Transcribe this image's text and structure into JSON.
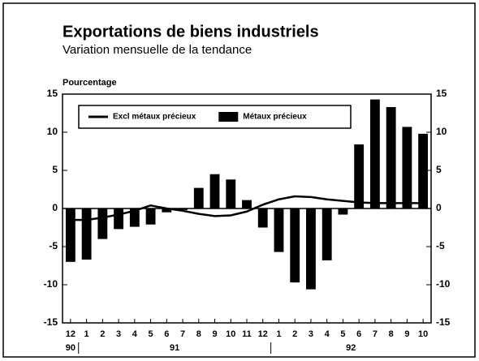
{
  "chart_data": {
    "type": "bar",
    "title": "Exportations de biens industriels",
    "subtitle": "Variation mensuelle de la tendance",
    "y_axis_label": "Pourcentage",
    "categories": [
      "12",
      "1",
      "2",
      "3",
      "4",
      "5",
      "6",
      "7",
      "8",
      "9",
      "10",
      "11",
      "12",
      "1",
      "2",
      "3",
      "4",
      "5",
      "6",
      "7",
      "8",
      "9",
      "10"
    ],
    "x_groups": [
      {
        "label": "90",
        "start": 0,
        "end": 0
      },
      {
        "label": "91",
        "start": 1,
        "end": 12
      },
      {
        "label": "92",
        "start": 13,
        "end": 22
      }
    ],
    "series": [
      {
        "name": "Excl métaux précieux",
        "kind": "line",
        "color": "#000000",
        "values": [
          -1.5,
          -1.5,
          -1.2,
          -0.8,
          -0.3,
          0.4,
          0,
          -0.3,
          -0.7,
          -1.0,
          -0.9,
          -0.4,
          0.5,
          1.2,
          1.6,
          1.5,
          1.2,
          1.0,
          0.8,
          0.7,
          0.7,
          0.7,
          0.7
        ]
      },
      {
        "name": "Métaux précieux",
        "kind": "bar",
        "color": "#000000",
        "values": [
          -7,
          -6.7,
          -4,
          -2.7,
          -2.4,
          -2.1,
          -0.5,
          -0.2,
          2.7,
          4.5,
          3.8,
          1.1,
          -2.5,
          -5.7,
          -9.7,
          -10.6,
          -6.8,
          -0.8,
          8.4,
          14.3,
          13.3,
          10.7,
          9.8
        ]
      }
    ],
    "ylim": [
      -15,
      15
    ],
    "yticks": [
      -15,
      -10,
      -5,
      0,
      5,
      10,
      15
    ],
    "y2lim": [
      -15,
      15
    ],
    "y2ticks": [
      -15,
      -10,
      -5,
      0,
      5,
      10,
      15
    ],
    "legend": "top-left"
  }
}
